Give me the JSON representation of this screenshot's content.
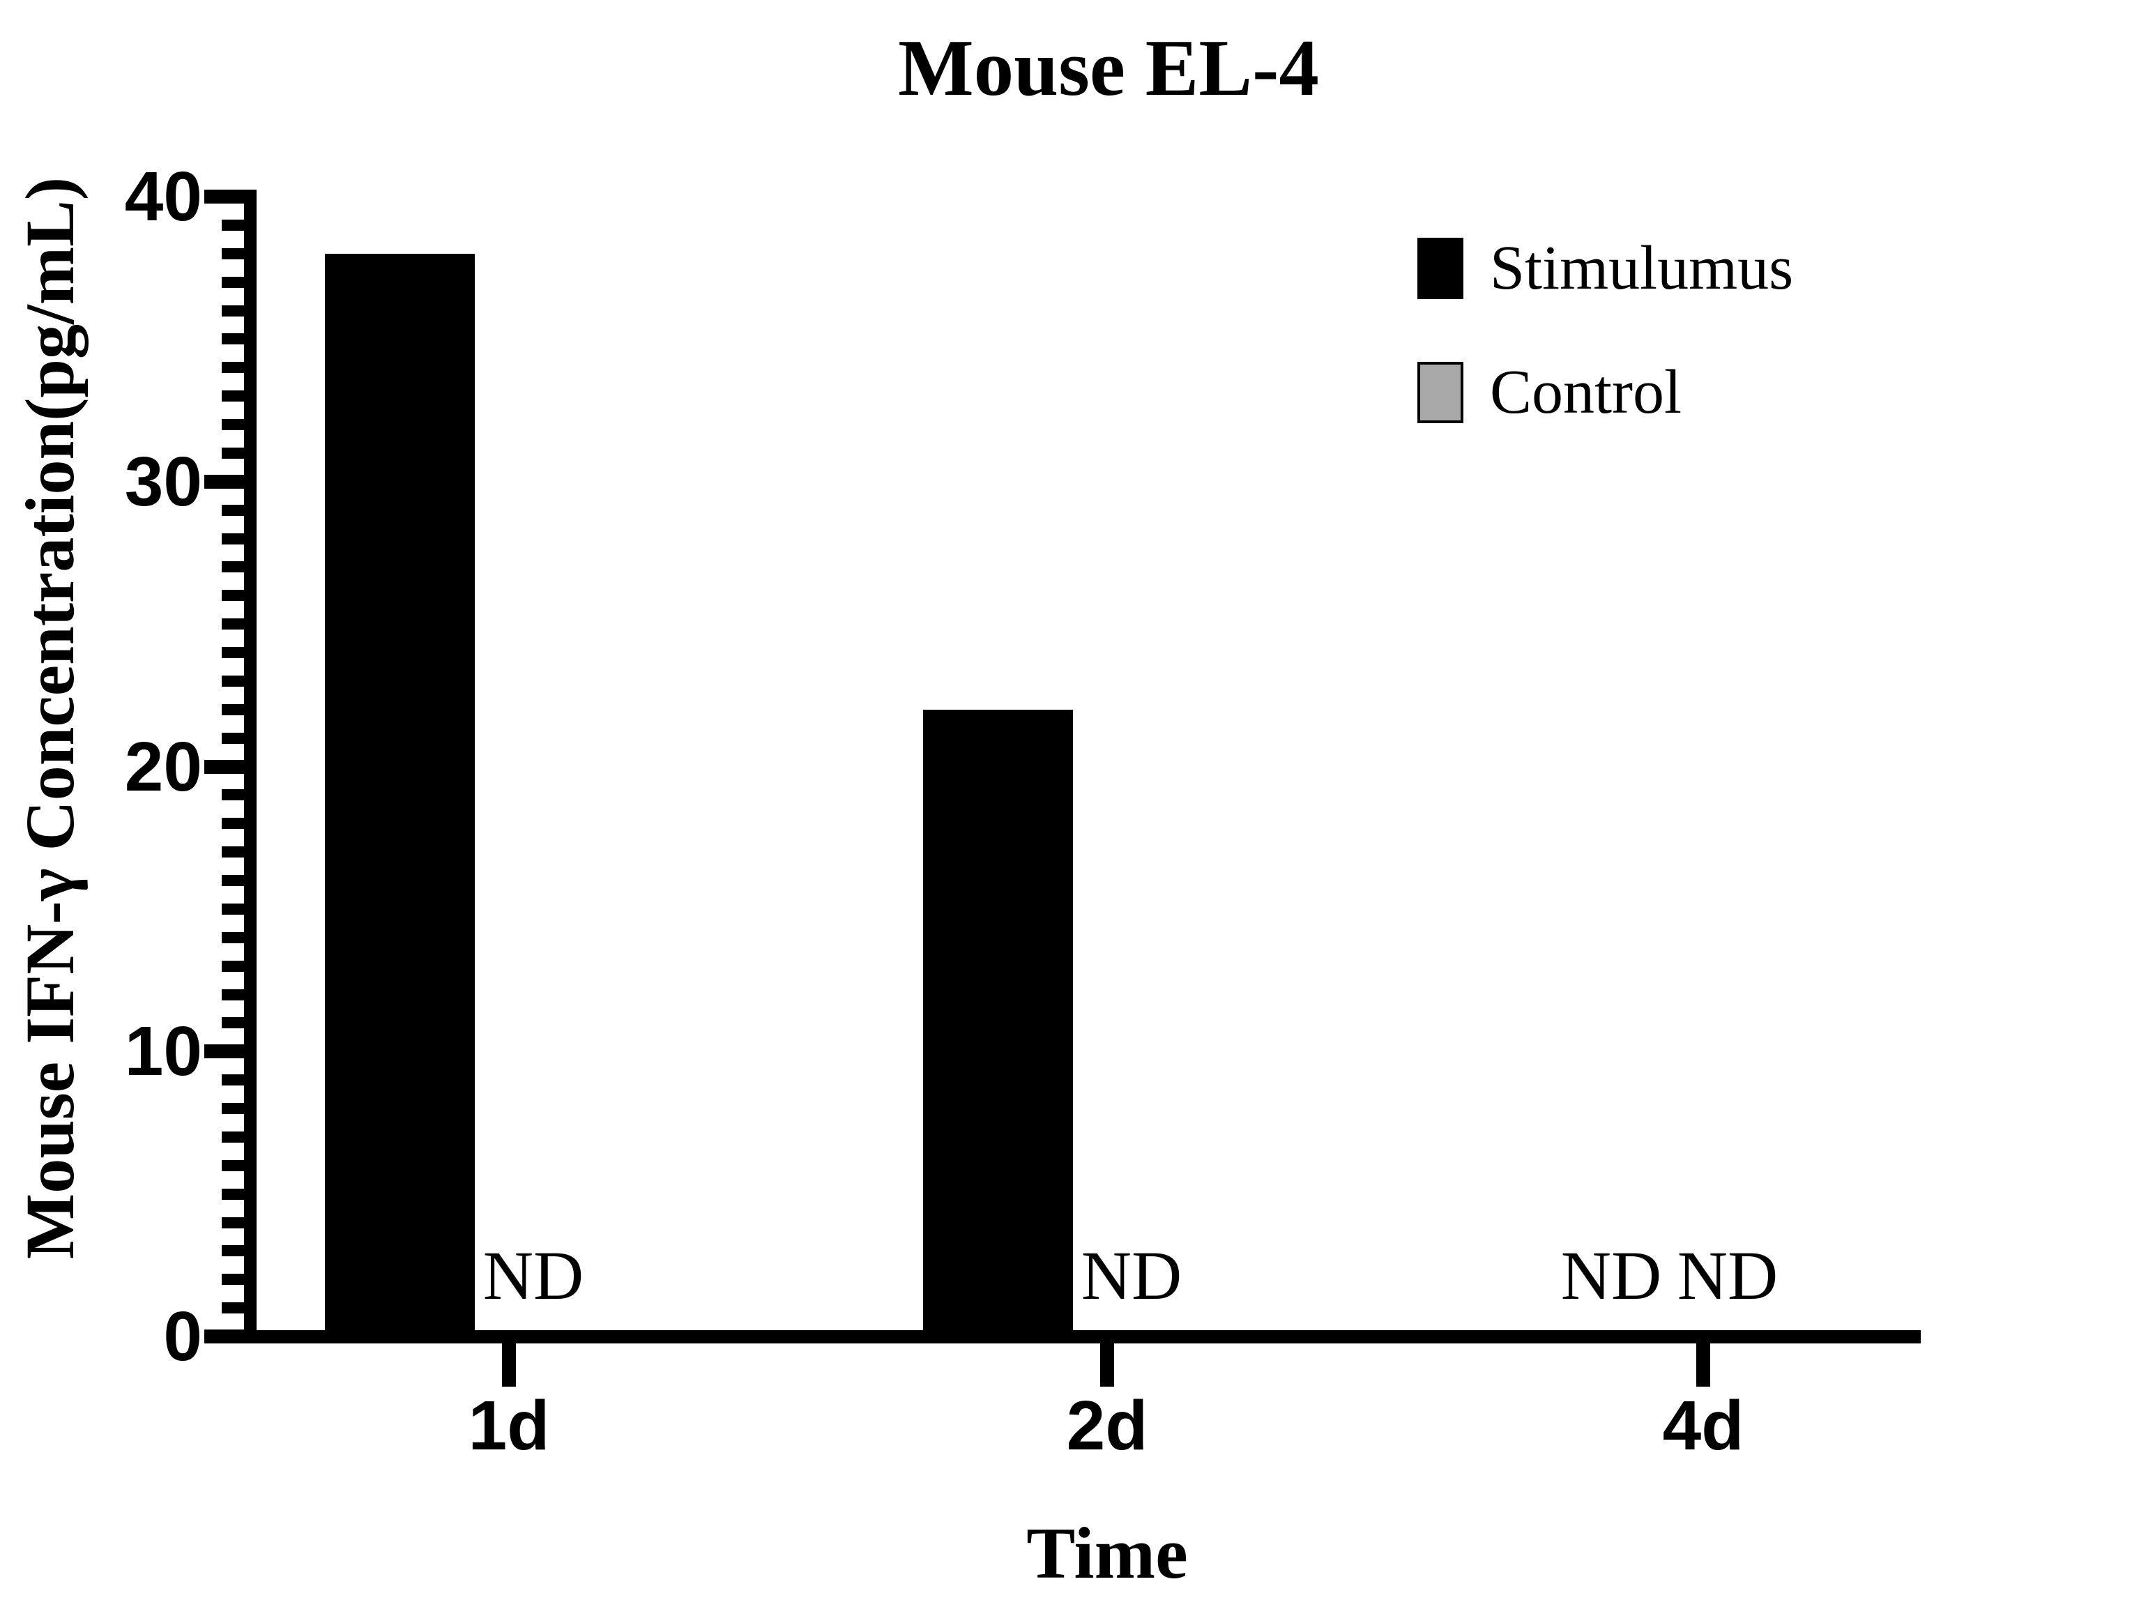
{
  "page": {
    "background": "#ffffff"
  },
  "chart_data": {
    "type": "bar",
    "title": "Mouse EL-4",
    "xlabel": "Time",
    "ylabel": "Mouse IFN-γ Concentration(pg/mL)",
    "categories": [
      "1d",
      "2d",
      "4d"
    ],
    "series": [
      {
        "name": "Stimulumus",
        "color": "#000000",
        "values": [
          38,
          22,
          "ND"
        ]
      },
      {
        "name": "Control",
        "color": "#A8A8A8",
        "values": [
          "ND",
          "ND",
          "ND"
        ]
      }
    ],
    "nd_label": "ND",
    "ylim": [
      0,
      40
    ],
    "yticks": [
      0,
      10,
      20,
      30,
      40
    ],
    "minor_tick_interval": 1,
    "axis_color": "#000000",
    "legend_position": "top-right",
    "grid": false
  }
}
